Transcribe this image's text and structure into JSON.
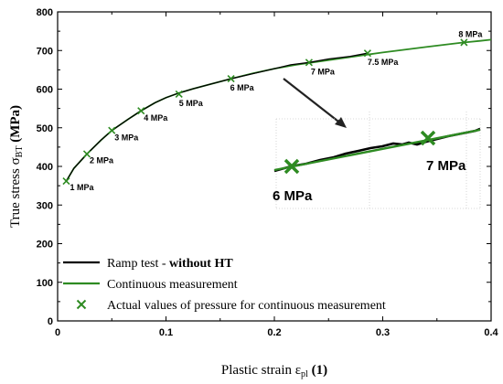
{
  "chart_data": {
    "type": "line",
    "title": "",
    "xlabel": {
      "main": "Plastic strain ε",
      "sub": "pl",
      "unit": "(1)"
    },
    "ylabel": {
      "main": "True stress σ",
      "sub": "BT",
      "unit": "(MPa)"
    },
    "xlim": [
      0,
      0.4
    ],
    "ylim": [
      0,
      800
    ],
    "x_ticks": [
      0,
      0.1,
      0.2,
      0.3,
      0.4
    ],
    "x_tick_labels": [
      "0",
      "0.1",
      "0.2",
      "0.3",
      "0.4"
    ],
    "y_ticks": [
      0,
      100,
      200,
      300,
      400,
      500,
      600,
      700,
      800
    ],
    "y_tick_labels": [
      "0",
      "100",
      "200",
      "300",
      "400",
      "500",
      "600",
      "700",
      "800"
    ],
    "grid": false,
    "legend_position": "bottom-left",
    "series": [
      {
        "name": "Ramp test - without HT",
        "name_plain": "Ramp test - ",
        "name_bold": "without HT",
        "color": "#000000",
        "x": [
          0.008,
          0.015,
          0.027,
          0.04,
          0.05,
          0.065,
          0.077,
          0.09,
          0.1,
          0.112,
          0.125,
          0.14,
          0.16,
          0.18,
          0.2,
          0.215,
          0.232,
          0.25,
          0.27,
          0.286
        ],
        "y": [
          362,
          395,
          432,
          468,
          493,
          522,
          544,
          565,
          578,
          590,
          601,
          612,
          627,
          640,
          653,
          663,
          669,
          678,
          685,
          693
        ]
      },
      {
        "name": "Continuous measurement",
        "color": "#2e8b22",
        "x": [
          0.008,
          0.015,
          0.027,
          0.04,
          0.05,
          0.065,
          0.077,
          0.09,
          0.1,
          0.112,
          0.125,
          0.14,
          0.16,
          0.18,
          0.2,
          0.22,
          0.24,
          0.26,
          0.28,
          0.3,
          0.32,
          0.34,
          0.36,
          0.375,
          0.39,
          0.4
        ],
        "y": [
          362,
          395,
          432,
          468,
          493,
          522,
          544,
          565,
          578,
          590,
          601,
          612,
          627,
          641,
          653,
          663,
          671,
          679,
          687,
          695,
          702,
          709,
          716,
          721,
          725,
          728
        ]
      },
      {
        "name": "Actual values of pressure for continuous measurement",
        "color": "#2e8b22",
        "marker": "x",
        "x": [
          0.008,
          0.027,
          0.05,
          0.077,
          0.112,
          0.16,
          0.232,
          0.286,
          0.375
        ],
        "y": [
          362,
          432,
          493,
          544,
          587,
          627,
          669,
          693,
          721
        ]
      }
    ],
    "annotations": [
      {
        "text": "1 MPa",
        "x": 0.008,
        "y": 362
      },
      {
        "text": "2 MPa",
        "x": 0.027,
        "y": 432
      },
      {
        "text": "3 MPa",
        "x": 0.05,
        "y": 493
      },
      {
        "text": "4 MPa",
        "x": 0.077,
        "y": 544
      },
      {
        "text": "5 MPa",
        "x": 0.112,
        "y": 587
      },
      {
        "text": "6 MPa",
        "x": 0.16,
        "y": 627
      },
      {
        "text": "7 MPa",
        "x": 0.232,
        "y": 669
      },
      {
        "text": "7.5 MPa",
        "x": 0.286,
        "y": 693
      },
      {
        "text": "8 MPa",
        "x": 0.375,
        "y": 721
      }
    ],
    "inset": {
      "description": "zoomed view of the 6 MPa – 7 MPa segment",
      "labels": [
        "6 MPa",
        "7 MPa"
      ],
      "markers": 2
    }
  }
}
